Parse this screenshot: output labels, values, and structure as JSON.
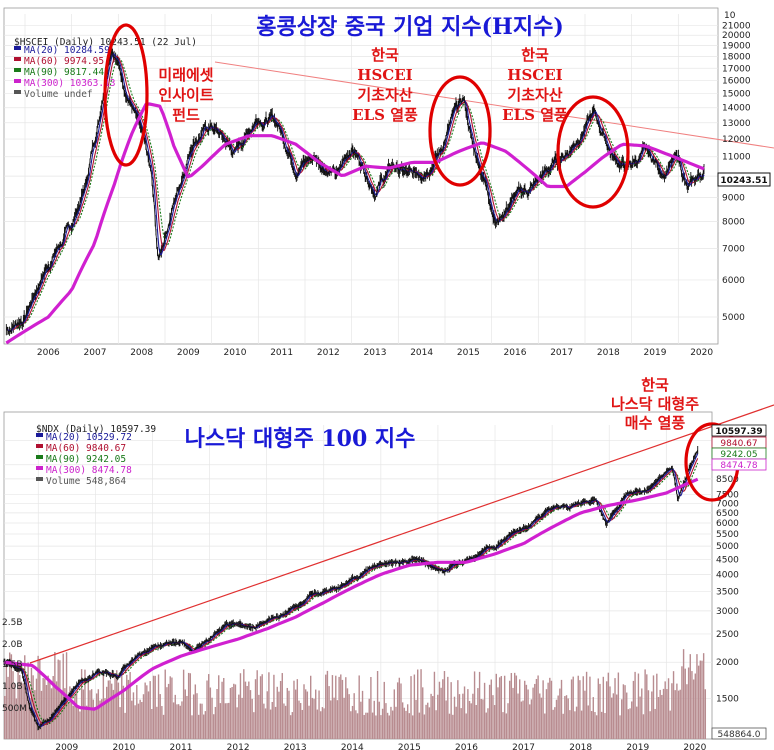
{
  "chart_data": [
    {
      "type": "line",
      "title": "홍콩상장 중국 기업 지수(H지수)",
      "header": "$HSCEI (Daily) 10243.51 (22 Jul)",
      "legend": [
        {
          "label": "MA(20) 10284.59",
          "color": "#1a1a99"
        },
        {
          "label": "MA(60) 9974.95",
          "color": "#b01030"
        },
        {
          "label": "MA(90) 9817.44",
          "color": "#1a7a1a"
        },
        {
          "label": "MA(300) 10363.13",
          "color": "#cc22cc"
        },
        {
          "label": "Volume undef",
          "color": "#555555"
        }
      ],
      "x_labels": [
        "2006",
        "2007",
        "2008",
        "2009",
        "2010",
        "2011",
        "2012",
        "2013",
        "2014",
        "2015",
        "2016",
        "2017",
        "2018",
        "2019",
        "2020"
      ],
      "y_ticks": [
        5000,
        6000,
        7000,
        8000,
        9000,
        10000,
        11000,
        12000,
        13000,
        14000,
        15000,
        16000,
        17000,
        18000,
        19000,
        20000,
        21000
      ],
      "y_tick_labels": [
        "5000",
        "6000",
        "7000",
        "8000",
        "9000",
        "",
        "11000",
        "12000",
        "13000",
        "14000",
        "15000",
        "16000",
        "17000",
        "18000",
        "19000",
        "20000",
        "21000"
      ],
      "y_extra_label": "10",
      "ylim": [
        4400,
        22200
      ],
      "log_scale": true,
      "last_value": "10243.51",
      "price_series": {
        "x": [
          2005.6,
          2006.0,
          2006.5,
          2007.0,
          2007.3,
          2007.6,
          2007.85,
          2008.1,
          2008.4,
          2008.7,
          2008.85,
          2009.0,
          2009.3,
          2009.6,
          2010.0,
          2010.5,
          2011.0,
          2011.4,
          2011.8,
          2012.2,
          2012.7,
          2013.0,
          2013.5,
          2013.9,
          2014.3,
          2014.6,
          2014.9,
          2015.2,
          2015.4,
          2015.6,
          2015.9,
          2016.1,
          2016.5,
          2016.9,
          2017.3,
          2017.7,
          2018.0,
          2018.2,
          2018.6,
          2018.9,
          2019.3,
          2019.7,
          2020.0,
          2020.2,
          2020.55
        ],
        "y": [
          4700,
          5000,
          6500,
          7800,
          9500,
          13500,
          19500,
          16000,
          13200,
          10000,
          6500,
          7500,
          9500,
          12000,
          12800,
          11200,
          13500,
          13000,
          10500,
          11000,
          10000,
          11600,
          9400,
          10500,
          9900,
          10500,
          11300,
          13500,
          14500,
          11500,
          9500,
          8000,
          9000,
          9500,
          10500,
          11500,
          12800,
          13500,
          11000,
          10400,
          11200,
          10200,
          10900,
          9300,
          10243
        ]
      },
      "ma300_series": {
        "x": [
          2005.6,
          2006.5,
          2007.0,
          2007.5,
          2007.9,
          2008.3,
          2008.6,
          2008.9,
          2009.2,
          2009.5,
          2009.8,
          2010.3,
          2010.8,
          2011.3,
          2011.8,
          2012.3,
          2012.8,
          2013.3,
          2013.8,
          2014.3,
          2014.8,
          2015.3,
          2015.8,
          2016.3,
          2016.8,
          2017.2,
          2017.6,
          2018.0,
          2018.4,
          2018.8,
          2019.3,
          2019.8,
          2020.2,
          2020.55
        ],
        "y": [
          4400,
          5000,
          5700,
          7200,
          9500,
          12400,
          14300,
          14100,
          11500,
          9900,
          10500,
          11700,
          12200,
          12200,
          11700,
          10700,
          10000,
          10500,
          10400,
          10700,
          10700,
          11300,
          11800,
          11300,
          10300,
          9500,
          9500,
          10200,
          11000,
          11700,
          11600,
          11100,
          10700,
          10363
        ]
      },
      "annotations": [
        {
          "text": "미래에셋 인사이트 펀드"
        },
        {
          "text": "한국 HSCEI 기초자산 ELS 열풍"
        },
        {
          "text": "한국 HSCEI 기초자산 ELS 열풍"
        }
      ]
    },
    {
      "type": "line",
      "title": "나스닥 대형주 100 지수",
      "header": "$NDX (Daily) 10597.39",
      "legend": [
        {
          "label": "MA(20) 10529.72",
          "color": "#1a1a99"
        },
        {
          "label": "MA(60) 9840.67",
          "color": "#b01030"
        },
        {
          "label": "MA(90) 9242.05",
          "color": "#1a7a1a"
        },
        {
          "label": "MA(300) 8474.78",
          "color": "#cc22cc"
        },
        {
          "label": "Volume 548,864",
          "color": "#555555"
        }
      ],
      "x_labels": [
        "2009",
        "2010",
        "2011",
        "2012",
        "2013",
        "2014",
        "2015",
        "2016",
        "2017",
        "2018",
        "2019",
        "2020"
      ],
      "y_ticks": [
        1500,
        2000,
        2500,
        3000,
        3500,
        4000,
        4500,
        5000,
        5500,
        6000,
        6500,
        7000,
        7500,
        8500,
        9500,
        11500
      ],
      "y_tick_labels": [
        "1500",
        "2000",
        "2500",
        "3000",
        "3500",
        "4000",
        "4500",
        "5000",
        "5500",
        "6000",
        "6500",
        "7000",
        "7500",
        "8500",
        "9500",
        "11500"
      ],
      "ylim": [
        1100,
        13000
      ],
      "log_scale": true,
      "volume_labels": [
        "2.5B",
        "2.0B",
        "1.5B",
        "1.0B",
        "500M"
      ],
      "last_value": "10597.39",
      "value_badges": [
        "10597.39",
        "9840.67",
        "9242.05",
        "8474.78"
      ],
      "volume_badge": "548864.0",
      "price_series": {
        "x": [
          2008.4,
          2008.7,
          2008.85,
          2009.0,
          2009.2,
          2009.6,
          2010.0,
          2010.4,
          2010.6,
          2011.0,
          2011.5,
          2011.7,
          2012.0,
          2012.3,
          2012.8,
          2013.3,
          2013.8,
          2014.3,
          2014.8,
          2015.3,
          2015.6,
          2016.1,
          2016.5,
          2017.0,
          2017.5,
          2018.0,
          2018.3,
          2018.75,
          2018.95,
          2019.3,
          2019.7,
          2020.1,
          2020.2,
          2020.55
        ],
        "y": [
          2000,
          1900,
          1400,
          1200,
          1250,
          1600,
          1850,
          1800,
          2000,
          2250,
          2350,
          2150,
          2400,
          2700,
          2650,
          2900,
          3400,
          3600,
          4200,
          4400,
          4500,
          4100,
          4500,
          5000,
          5800,
          6700,
          6800,
          7300,
          6000,
          7500,
          7800,
          9300,
          7200,
          10597
        ]
      },
      "ma300_series": {
        "x": [
          2008.4,
          2008.9,
          2009.3,
          2009.7,
          2010.0,
          2010.5,
          2011.0,
          2011.5,
          2012.0,
          2012.5,
          2013.0,
          2013.5,
          2014.0,
          2014.5,
          2015.0,
          2015.5,
          2016.0,
          2016.5,
          2017.0,
          2017.5,
          2018.0,
          2018.5,
          2019.0,
          2019.5,
          2020.0,
          2020.55
        ],
        "y": [
          2000,
          1950,
          1650,
          1400,
          1380,
          1600,
          1900,
          2100,
          2250,
          2400,
          2600,
          2850,
          3200,
          3600,
          4000,
          4300,
          4400,
          4400,
          4700,
          5100,
          5800,
          6500,
          6900,
          7200,
          7600,
          8474
        ]
      },
      "annotations": [
        {
          "text": "한국 나스닥 대형주 매수 열풍"
        }
      ]
    }
  ]
}
